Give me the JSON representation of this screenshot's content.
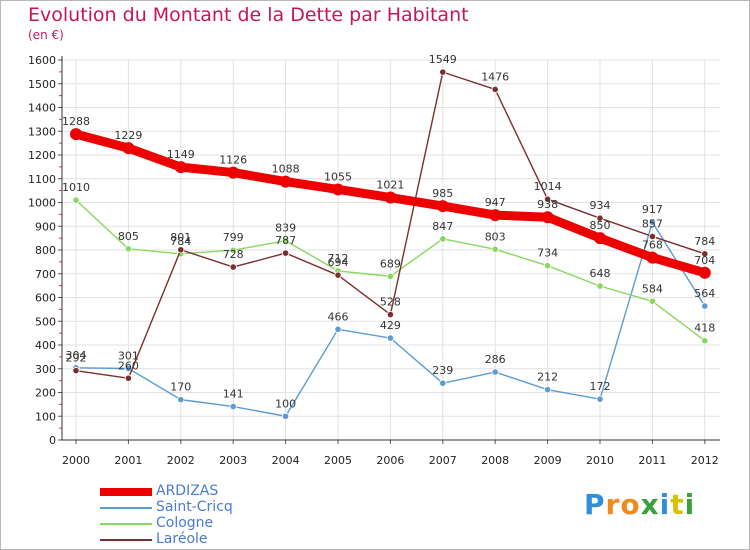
{
  "header": {
    "title": "Evolution du Montant de la Dette par Habitant",
    "unit": "(en €)"
  },
  "brand": {
    "letters": [
      "P",
      "r",
      "o",
      "x",
      "i",
      "t",
      "i"
    ],
    "colors": [
      "#2f8fd8",
      "#f08a1e",
      "#f08a1e",
      "#3aa23a",
      "#2f8fd8",
      "#d8c200",
      "#3aa23a"
    ]
  },
  "chart_data": {
    "type": "line",
    "title": "Evolution du Montant de la Dette par Habitant",
    "ylabel": "(en €)",
    "xlabel": "",
    "ylim": [
      0,
      1600
    ],
    "yticks": [
      0,
      100,
      200,
      300,
      400,
      500,
      600,
      700,
      800,
      900,
      1000,
      1100,
      1200,
      1300,
      1400,
      1500,
      1600
    ],
    "grid": true,
    "legend_position": "bottom-left",
    "categories": [
      "2000",
      "2001",
      "2002",
      "2003",
      "2004",
      "2005",
      "2006",
      "2007",
      "2008",
      "2009",
      "2010",
      "2011",
      "2012"
    ],
    "series": [
      {
        "name": "ARDIZAS",
        "color": "#ee0000",
        "values": [
          1288,
          1229,
          1149,
          1126,
          1088,
          1055,
          1021,
          985,
          947,
          938,
          850,
          768,
          704
        ]
      },
      {
        "name": "Saint-Cricq",
        "color": "#5b9bd5",
        "values": [
          304,
          301,
          170,
          141,
          100,
          466,
          429,
          239,
          286,
          212,
          172,
          917,
          564
        ]
      },
      {
        "name": "Cologne",
        "color": "#88d860",
        "values": [
          1010,
          805,
          784,
          799,
          839,
          712,
          689,
          847,
          803,
          734,
          648,
          584,
          418
        ]
      },
      {
        "name": "Laréole",
        "color": "#7a2f2f",
        "values": [
          292,
          260,
          801,
          728,
          787,
          694,
          528,
          1549,
          1476,
          1014,
          934,
          857,
          784
        ]
      }
    ]
  }
}
